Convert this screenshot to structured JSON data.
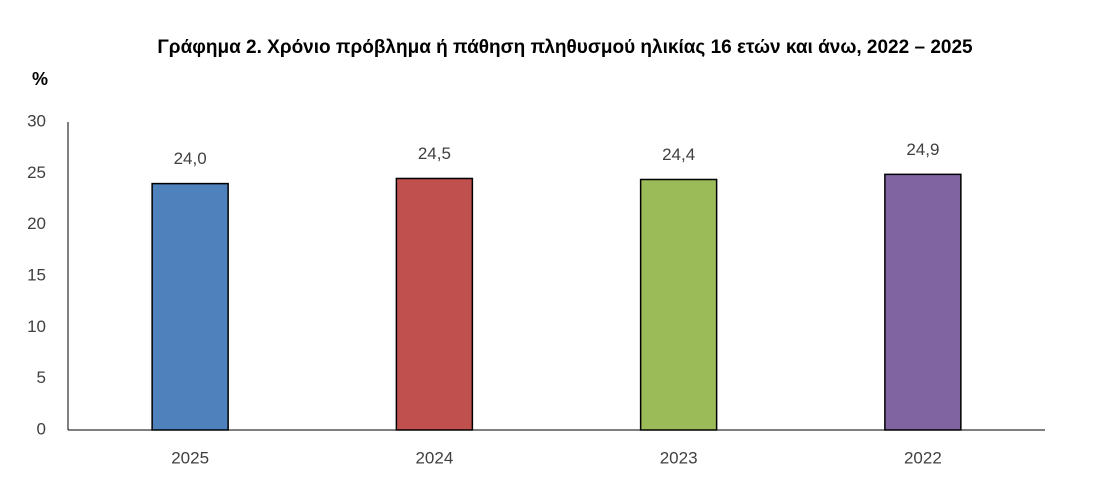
{
  "chart_data": {
    "type": "bar",
    "title": "Γράφημα 2. Χρόνιο πρόβλημα ή πάθηση πληθυσμού ηλικίας 16 ετών και άνω, 2022 – 2025",
    "y_label": "%",
    "categories": [
      "2025",
      "2024",
      "2023",
      "2022"
    ],
    "values": [
      24.0,
      24.5,
      24.4,
      24.9
    ],
    "value_labels": [
      "24,0",
      "24,5",
      "24,4",
      "24,9"
    ],
    "colors": [
      "#4f81bd",
      "#c0504d",
      "#9bbb59",
      "#8064a2"
    ],
    "ylim": [
      0,
      30
    ],
    "yticks": [
      0,
      5,
      10,
      15,
      20,
      25,
      30
    ],
    "grid": false
  }
}
